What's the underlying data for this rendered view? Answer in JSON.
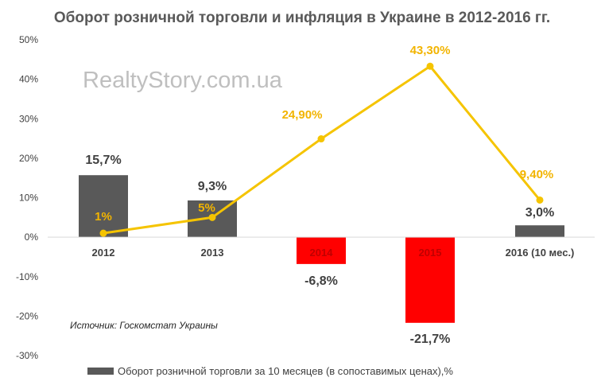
{
  "chart_data": {
    "type": "bar",
    "title": "Оборот розничной торговли и инфляция в Украине в 2012-2016 гг.",
    "categories": [
      "2012",
      "2013",
      "2014",
      "2015",
      "2016 (10 мес.)"
    ],
    "yticks": [
      "50%",
      "40%",
      "30%",
      "20%",
      "10%",
      "0%",
      "-10%",
      "-20%",
      "-30%"
    ],
    "ylim": [
      -30,
      50
    ],
    "grid": false,
    "series": [
      {
        "name": "Оборот розничной торговли за 10 месяцев (в сопоставимых ценах),%",
        "type": "bar",
        "values": [
          15.7,
          9.3,
          -6.8,
          -21.7,
          3.0
        ],
        "labels": [
          "15,7%",
          "9,3%",
          "-6,8%",
          "-21,7%",
          "3,0%"
        ],
        "colors": [
          "#595959",
          "#595959",
          "#ff0000",
          "#ff0000",
          "#595959"
        ]
      },
      {
        "type": "line",
        "values": [
          1,
          5,
          24.9,
          43.3,
          9.4
        ],
        "labels": [
          "1%",
          "5%",
          "24,90%",
          "43,30%",
          "9,40%"
        ],
        "color": "#f5c400"
      }
    ],
    "legend_position": "bottom",
    "annotations": {
      "watermark": "RealtyStory.com.ua",
      "source": "Источник: Госкомстат Украины"
    }
  }
}
